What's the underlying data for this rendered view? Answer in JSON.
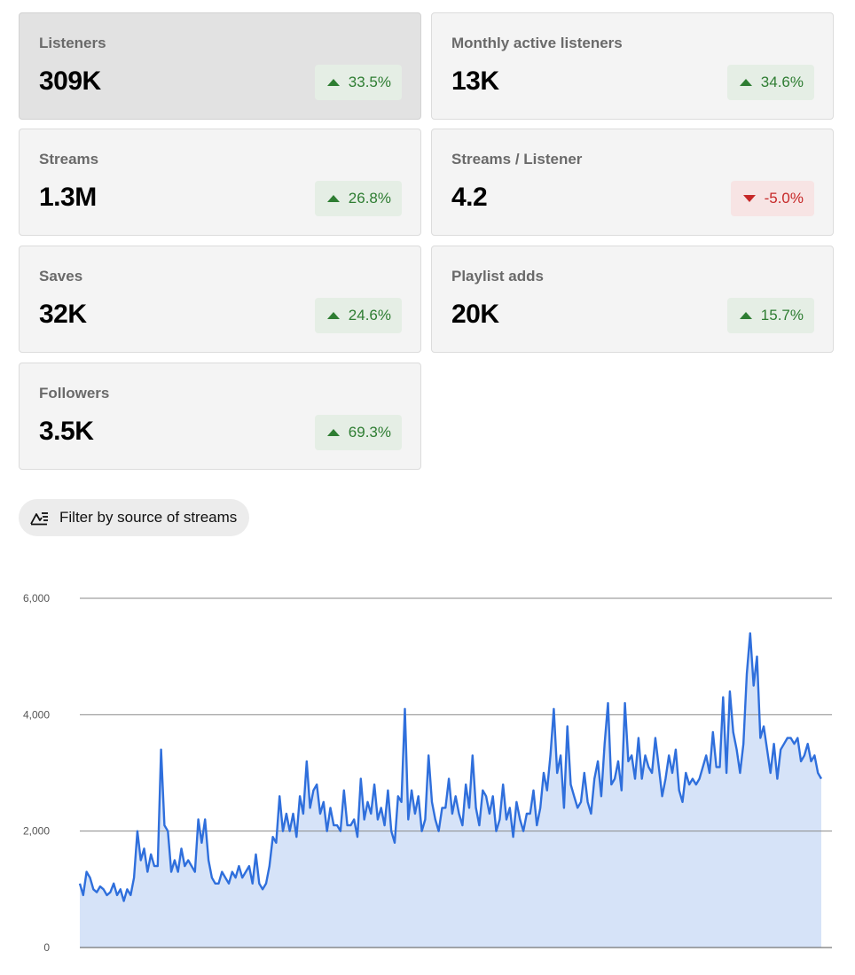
{
  "metrics": [
    {
      "label": "Listeners",
      "value": "309K",
      "change": "33.5%",
      "direction": "up",
      "selected": true
    },
    {
      "label": "Monthly active listeners",
      "value": "13K",
      "change": "34.6%",
      "direction": "up",
      "selected": false
    },
    {
      "label": "Streams",
      "value": "1.3M",
      "change": "26.8%",
      "direction": "up",
      "selected": false
    },
    {
      "label": "Streams / Listener",
      "value": "4.2",
      "change": "-5.0%",
      "direction": "down",
      "selected": false
    },
    {
      "label": "Saves",
      "value": "32K",
      "change": "24.6%",
      "direction": "up",
      "selected": false
    },
    {
      "label": "Playlist adds",
      "value": "20K",
      "change": "15.7%",
      "direction": "up",
      "selected": false
    },
    {
      "label": "Followers",
      "value": "3.5K",
      "change": "69.3%",
      "direction": "up",
      "selected": false
    }
  ],
  "filter": {
    "label": "Filter by source of streams",
    "icon": "filter-source-icon"
  },
  "colors": {
    "line": "#2f6fdc",
    "area": "#d6e3f8",
    "up": "#2e7d32",
    "down": "#c62828"
  },
  "chart_data": {
    "type": "area",
    "title": "",
    "xlabel": "",
    "ylabel": "",
    "ylim": [
      0,
      6000
    ],
    "yticks": [
      0,
      2000,
      4000,
      6000
    ],
    "ytick_labels": [
      "0",
      "2,000",
      "4,000",
      "6,000"
    ],
    "grid": true,
    "series": [
      {
        "values": [
          1100,
          900,
          1300,
          1200,
          1000,
          950,
          1050,
          1000,
          900,
          950,
          1100,
          900,
          1000,
          800,
          1000,
          900,
          1200,
          2000,
          1500,
          1700,
          1300,
          1600,
          1400,
          1400,
          3400,
          2100,
          2000,
          1300,
          1500,
          1300,
          1700,
          1400,
          1500,
          1400,
          1300,
          2200,
          1800,
          2200,
          1500,
          1200,
          1100,
          1100,
          1300,
          1200,
          1100,
          1300,
          1200,
          1400,
          1200,
          1300,
          1400,
          1100,
          1600,
          1100,
          1000,
          1100,
          1400,
          1900,
          1800,
          2600,
          2000,
          2300,
          2000,
          2300,
          1900,
          2600,
          2300,
          3200,
          2400,
          2700,
          2800,
          2300,
          2500,
          2000,
          2400,
          2100,
          2100,
          2000,
          2700,
          2100,
          2100,
          2200,
          1900,
          2900,
          2200,
          2500,
          2300,
          2800,
          2200,
          2400,
          2100,
          2700,
          2000,
          1800,
          2600,
          2500,
          4100,
          2200,
          2700,
          2300,
          2600,
          2000,
          2200,
          3300,
          2500,
          2200,
          2000,
          2400,
          2400,
          2900,
          2300,
          2600,
          2300,
          2100,
          2800,
          2400,
          3300,
          2400,
          2100,
          2700,
          2600,
          2300,
          2600,
          2000,
          2200,
          2800,
          2200,
          2400,
          1900,
          2500,
          2200,
          2000,
          2300,
          2300,
          2700,
          2100,
          2400,
          3000,
          2700,
          3300,
          4100,
          3000,
          3300,
          2400,
          3800,
          2800,
          2600,
          2400,
          2500,
          3000,
          2500,
          2300,
          2900,
          3200,
          2600,
          3500,
          4200,
          2800,
          2900,
          3200,
          2700,
          4200,
          3200,
          3300,
          2900,
          3600,
          2900,
          3300,
          3100,
          3000,
          3600,
          3100,
          2600,
          2900,
          3300,
          3000,
          3400,
          2700,
          2500,
          3000,
          2800,
          2900,
          2800,
          2900,
          3100,
          3300,
          3000,
          3700,
          3100,
          3100,
          4300,
          3000,
          4400,
          3700,
          3400,
          3000,
          3500,
          4700,
          5400,
          4500,
          5000,
          3600,
          3800,
          3400,
          3000,
          3500,
          2900,
          3400,
          3500,
          3600,
          3600,
          3500,
          3600,
          3200,
          3300,
          3500,
          3200,
          3300,
          3000,
          2900
        ]
      }
    ]
  }
}
